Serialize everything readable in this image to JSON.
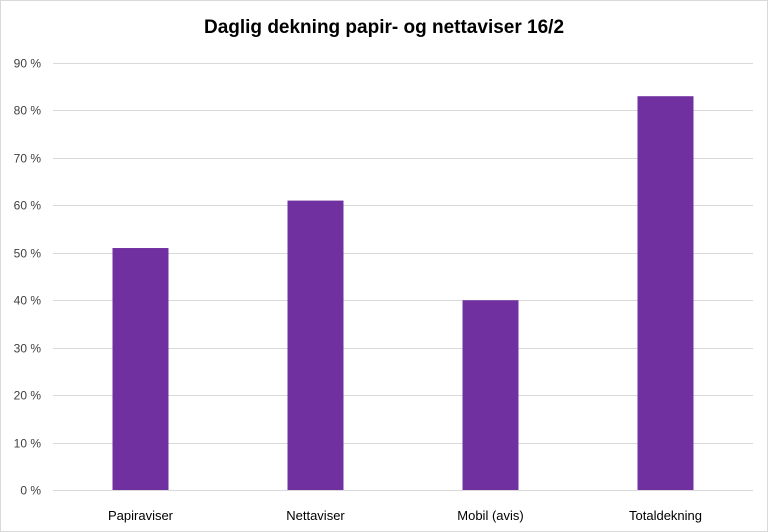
{
  "chart_data": {
    "type": "bar",
    "title": "Daglig dekning papir- og nettaviser 16/2",
    "xlabel": "",
    "ylabel": "",
    "categories": [
      "Papiraviser",
      "Nettaviser",
      "Mobil (avis)",
      "Totaldekning"
    ],
    "values": [
      51,
      61,
      40,
      83
    ],
    "ylim": [
      0,
      90
    ],
    "y_ticks": [
      0,
      10,
      20,
      30,
      40,
      50,
      60,
      70,
      80,
      90
    ],
    "y_tick_labels": [
      "0 %",
      "10 %",
      "20 %",
      "30 %",
      "40 %",
      "50 %",
      "60 %",
      "70 %",
      "80 %",
      "90 %"
    ],
    "grid": true,
    "legend": "none",
    "bar_color": "#7030a0",
    "grid_color": "#d9d9d9"
  }
}
